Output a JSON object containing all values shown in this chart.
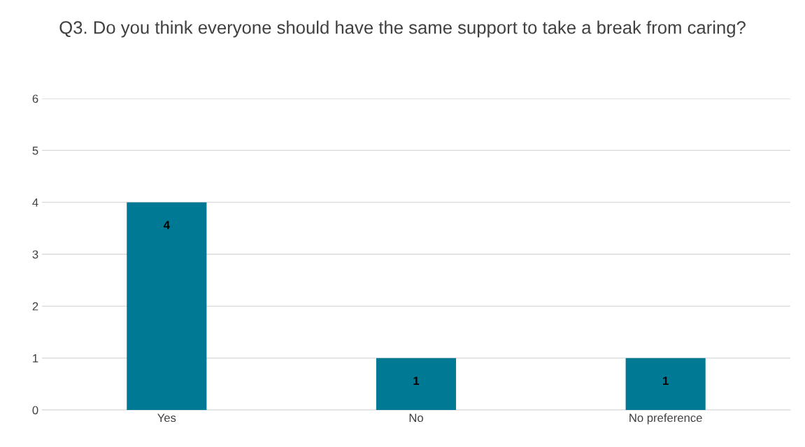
{
  "chart_data": {
    "type": "bar",
    "title": "Q3. Do you think everyone should have the same support to take a break from caring?",
    "categories": [
      "Yes",
      "No",
      "No preference"
    ],
    "values": [
      4,
      1,
      1
    ],
    "color": "#007a94",
    "ylim": [
      0,
      6
    ],
    "yticks": [
      0,
      1,
      2,
      3,
      4,
      5,
      6
    ],
    "grid": "y",
    "data_labels": true
  }
}
